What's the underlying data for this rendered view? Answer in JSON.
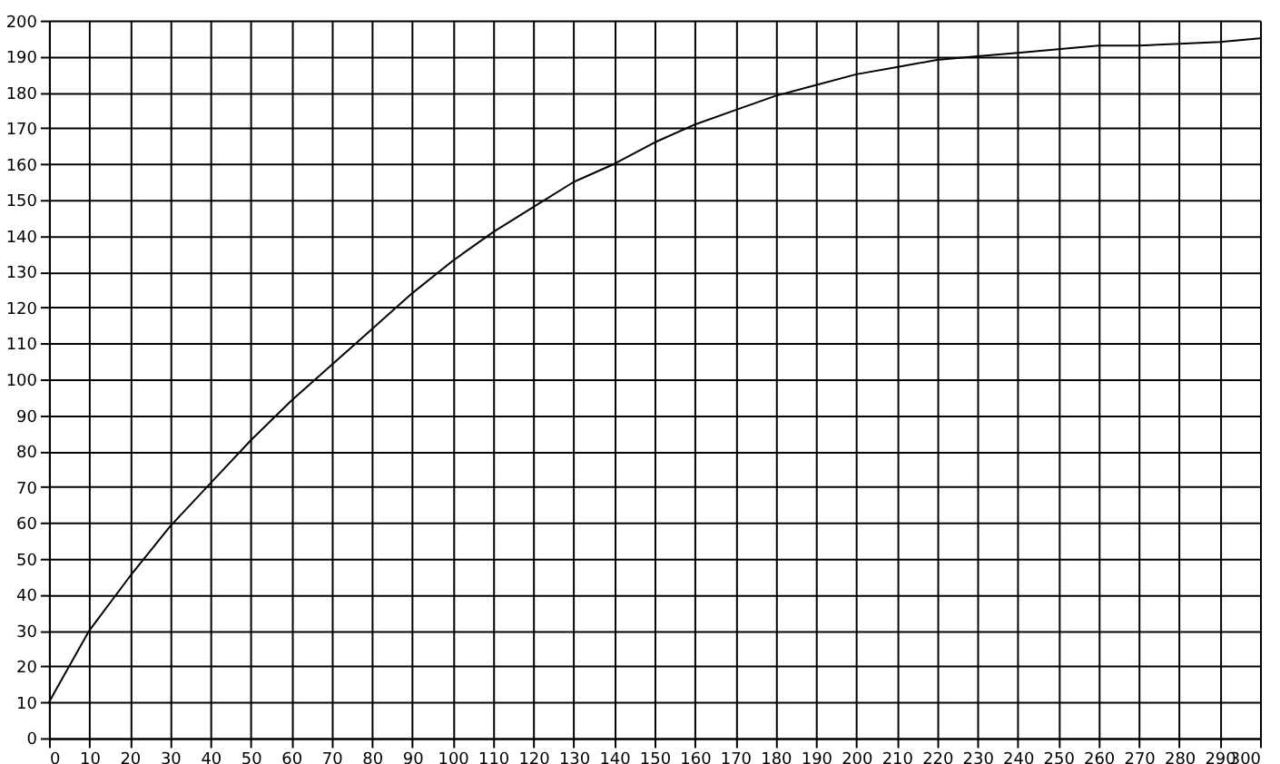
{
  "chart_data": {
    "type": "line",
    "x": [
      0,
      10,
      20,
      30,
      40,
      50,
      60,
      70,
      80,
      90,
      100,
      110,
      120,
      130,
      140,
      150,
      160,
      170,
      180,
      190,
      200,
      210,
      220,
      230,
      240,
      250,
      260,
      270,
      280,
      290,
      300
    ],
    "series": [
      {
        "color": "#000000",
        "values": [
          10,
          30,
          45,
          59,
          71,
          83,
          94,
          104,
          114,
          124,
          133,
          141,
          148,
          155,
          160,
          166,
          171,
          175,
          179,
          182,
          185,
          187,
          189,
          190,
          191,
          192,
          193,
          193,
          193.5,
          194,
          195
        ]
      }
    ],
    "xlim": [
      0,
      300
    ],
    "ylim": [
      0,
      200
    ],
    "xticks": [
      0,
      10,
      20,
      30,
      40,
      50,
      60,
      70,
      80,
      90,
      100,
      110,
      120,
      130,
      140,
      150,
      160,
      170,
      180,
      190,
      200,
      210,
      220,
      230,
      240,
      250,
      260,
      270,
      280,
      290,
      300
    ],
    "yticks": [
      0,
      10,
      20,
      30,
      40,
      50,
      60,
      70,
      80,
      90,
      100,
      110,
      120,
      130,
      140,
      150,
      160,
      170,
      180,
      190,
      200
    ],
    "grid": true,
    "marker": "none",
    "line_style": "solid"
  }
}
